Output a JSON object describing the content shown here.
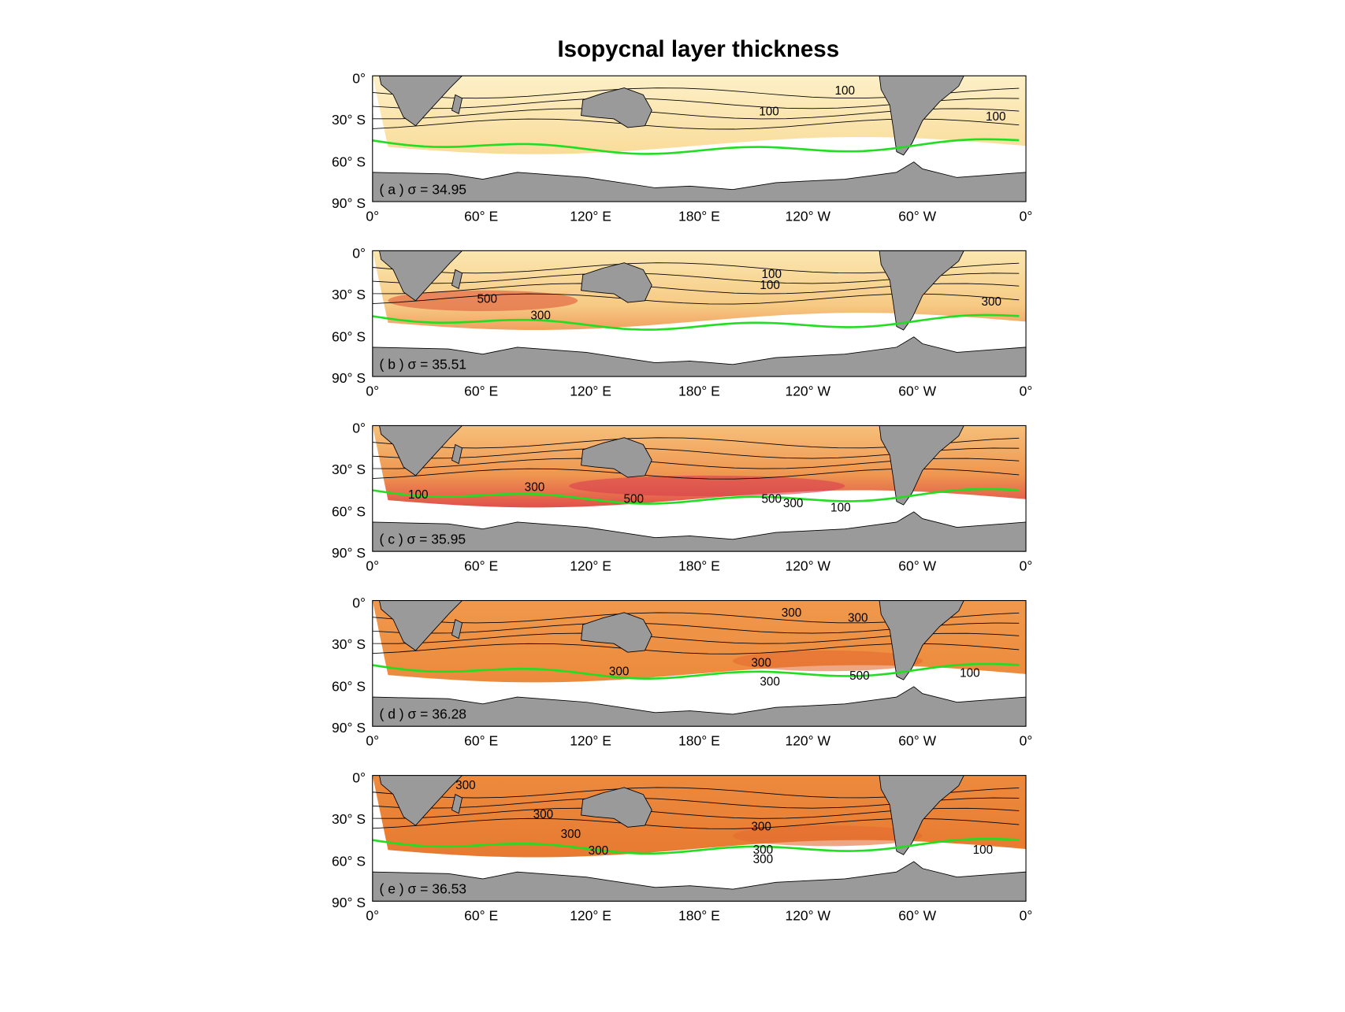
{
  "title": "Isopycnal layer thickness",
  "lat_labels": [
    "0°",
    "30° S",
    "60° S",
    "90° S"
  ],
  "lon_labels": [
    "0°",
    "60° E",
    "120° E",
    "180° E",
    "120° W",
    "60° W",
    "0°"
  ],
  "panels": [
    {
      "label": "( a ) σ = 34.95",
      "contour_labels": [
        "100",
        "100",
        "100"
      ]
    },
    {
      "label": "( b ) σ = 35.51",
      "contour_labels": [
        "100",
        "100",
        "500",
        "300",
        "300"
      ]
    },
    {
      "label": "( c ) σ = 35.95",
      "contour_labels": [
        "300",
        "100",
        "500",
        "500",
        "300",
        "100"
      ]
    },
    {
      "label": "( d ) σ = 36.28",
      "contour_labels": [
        "300",
        "300",
        "300",
        "300",
        "300",
        "500",
        "100"
      ]
    },
    {
      "label": "( e ) σ = 36.53",
      "contour_labels": [
        "300",
        "300",
        "300",
        "300",
        "300",
        "300",
        "300",
        "100"
      ]
    }
  ]
}
